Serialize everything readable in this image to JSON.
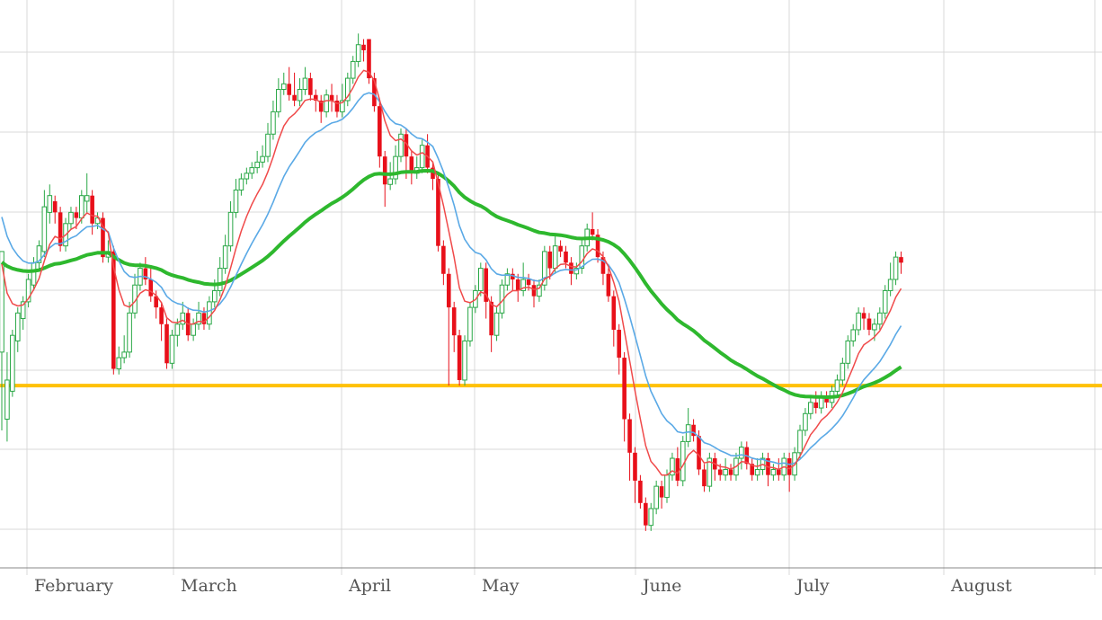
{
  "chart_data": {
    "type": "candlestick",
    "x_axis": {
      "months": [
        "February",
        "March",
        "April",
        "May",
        "June",
        "July",
        "August"
      ]
    },
    "grid": true,
    "y_range": [
      0,
      10
    ],
    "horizontal_line": {
      "value": 3.1,
      "color": "#ffc107"
    },
    "colors": {
      "up": "#28a745",
      "down": "#e8101a",
      "fast_ma": "#f04a4a",
      "slow_ma": "#5aa9e6",
      "long_ma": "#2eb82e",
      "grid": "#d8d8d8"
    },
    "series": [
      {
        "name": "",
        "values": [
          [
            3.7,
            5.5,
            5.5,
            2.3
          ],
          [
            2.5,
            3.2,
            3.7,
            2.1
          ],
          [
            3.0,
            4.0,
            4.1,
            2.9
          ],
          [
            3.9,
            4.4,
            4.5,
            3.7
          ],
          [
            4.3,
            4.6,
            4.7,
            4.1
          ],
          [
            4.6,
            5.0,
            5.1,
            4.5
          ],
          [
            4.9,
            5.3,
            5.4,
            4.8
          ],
          [
            5.3,
            5.6,
            5.7,
            5.2
          ],
          [
            5.5,
            6.3,
            6.6,
            5.4
          ],
          [
            6.2,
            6.5,
            6.7,
            6.0
          ],
          [
            6.4,
            6.2,
            6.5,
            6.0
          ],
          [
            6.2,
            5.6,
            6.3,
            5.5
          ],
          [
            5.6,
            6.0,
            6.1,
            5.5
          ],
          [
            6.0,
            6.2,
            6.3,
            5.9
          ],
          [
            6.2,
            6.1,
            6.3,
            5.9
          ],
          [
            6.1,
            6.5,
            6.6,
            6.0
          ],
          [
            6.4,
            6.5,
            6.9,
            6.2
          ],
          [
            6.5,
            6.0,
            6.6,
            5.8
          ],
          [
            6.0,
            6.1,
            6.2,
            5.9
          ],
          [
            6.1,
            5.4,
            6.2,
            5.3
          ],
          [
            5.4,
            5.5,
            5.7,
            5.3
          ],
          [
            5.5,
            3.4,
            5.6,
            3.3
          ],
          [
            3.4,
            3.6,
            3.8,
            3.3
          ],
          [
            3.6,
            3.7,
            4.0,
            3.5
          ],
          [
            3.7,
            4.4,
            4.6,
            3.6
          ],
          [
            4.4,
            4.9,
            5.1,
            4.3
          ],
          [
            4.9,
            5.2,
            5.3,
            4.8
          ],
          [
            5.2,
            5.0,
            5.4,
            4.9
          ],
          [
            5.0,
            4.7,
            5.2,
            4.6
          ],
          [
            4.7,
            4.5,
            4.8,
            4.3
          ],
          [
            4.5,
            4.2,
            4.6,
            3.9
          ],
          [
            4.2,
            3.5,
            4.3,
            3.4
          ],
          [
            3.5,
            4.0,
            4.1,
            3.4
          ],
          [
            4.0,
            4.2,
            4.3,
            3.8
          ],
          [
            4.2,
            4.4,
            4.6,
            4.1
          ],
          [
            4.4,
            4.0,
            4.5,
            3.9
          ],
          [
            4.0,
            4.2,
            4.3,
            3.9
          ],
          [
            4.2,
            4.4,
            4.6,
            4.1
          ],
          [
            4.4,
            4.2,
            4.5,
            4.1
          ],
          [
            4.2,
            4.6,
            4.7,
            4.1
          ],
          [
            4.6,
            4.8,
            5.0,
            4.5
          ],
          [
            4.8,
            5.2,
            5.4,
            4.7
          ],
          [
            5.2,
            5.6,
            5.8,
            5.1
          ],
          [
            5.6,
            6.2,
            6.4,
            5.5
          ],
          [
            6.2,
            6.6,
            6.8,
            6.1
          ],
          [
            6.6,
            6.8,
            6.9,
            6.5
          ],
          [
            6.8,
            6.9,
            7.0,
            6.7
          ],
          [
            6.9,
            7.0,
            7.1,
            6.8
          ],
          [
            7.0,
            7.1,
            7.3,
            6.9
          ],
          [
            7.1,
            7.2,
            7.4,
            7.0
          ],
          [
            7.2,
            7.6,
            7.8,
            7.1
          ],
          [
            7.6,
            8.0,
            8.2,
            7.5
          ],
          [
            8.0,
            8.4,
            8.6,
            7.9
          ],
          [
            8.4,
            8.5,
            8.7,
            8.3
          ],
          [
            8.5,
            8.3,
            8.8,
            8.2
          ],
          [
            8.3,
            8.2,
            8.7,
            8.1
          ],
          [
            8.2,
            8.4,
            8.6,
            8.1
          ],
          [
            8.4,
            8.6,
            8.8,
            8.3
          ],
          [
            8.6,
            8.3,
            8.7,
            8.2
          ],
          [
            8.3,
            8.2,
            8.4,
            8.0
          ],
          [
            8.2,
            8.0,
            8.3,
            7.8
          ],
          [
            8.0,
            8.3,
            8.4,
            7.9
          ],
          [
            8.3,
            8.2,
            8.5,
            8.0
          ],
          [
            8.2,
            8.0,
            8.3,
            7.9
          ],
          [
            8.0,
            8.2,
            8.5,
            7.9
          ],
          [
            8.2,
            8.6,
            8.7,
            8.1
          ],
          [
            8.6,
            8.9,
            9.0,
            8.5
          ],
          [
            8.9,
            9.2,
            9.4,
            8.8
          ],
          [
            9.2,
            9.1,
            9.3,
            8.9
          ],
          [
            9.3,
            8.6,
            9.3,
            8.5
          ],
          [
            8.6,
            8.1,
            8.7,
            8.0
          ],
          [
            8.1,
            7.2,
            8.2,
            7.0
          ],
          [
            7.2,
            6.7,
            7.3,
            6.3
          ],
          [
            6.7,
            6.8,
            7.1,
            6.6
          ],
          [
            6.8,
            7.2,
            7.4,
            6.7
          ],
          [
            7.2,
            7.6,
            7.7,
            7.1
          ],
          [
            7.6,
            7.2,
            7.7,
            6.8
          ],
          [
            7.2,
            6.9,
            7.3,
            6.7
          ],
          [
            6.9,
            7.0,
            7.2,
            6.8
          ],
          [
            7.0,
            7.4,
            7.5,
            6.9
          ],
          [
            7.4,
            7.0,
            7.6,
            6.9
          ],
          [
            7.0,
            6.8,
            7.1,
            6.6
          ],
          [
            6.8,
            5.6,
            6.9,
            5.5
          ],
          [
            5.6,
            5.1,
            5.7,
            4.9
          ],
          [
            5.1,
            4.5,
            5.2,
            3.1
          ],
          [
            4.5,
            4.0,
            4.6,
            3.7
          ],
          [
            4.0,
            3.2,
            4.1,
            3.1
          ],
          [
            3.2,
            3.9,
            4.0,
            3.1
          ],
          [
            3.9,
            4.5,
            4.6,
            3.8
          ],
          [
            4.5,
            4.8,
            4.9,
            4.4
          ],
          [
            4.8,
            5.2,
            5.3,
            4.7
          ],
          [
            5.2,
            4.6,
            5.3,
            4.3
          ],
          [
            4.6,
            4.0,
            4.7,
            3.7
          ],
          [
            4.0,
            4.4,
            4.5,
            3.9
          ],
          [
            4.4,
            4.9,
            5.0,
            4.3
          ],
          [
            4.9,
            5.1,
            5.2,
            4.8
          ],
          [
            5.1,
            5.0,
            5.2,
            4.8
          ],
          [
            5.0,
            4.8,
            5.1,
            4.6
          ],
          [
            4.8,
            5.0,
            5.3,
            4.7
          ],
          [
            5.0,
            4.9,
            5.1,
            4.8
          ],
          [
            4.9,
            4.7,
            5.0,
            4.5
          ],
          [
            4.7,
            4.9,
            5.0,
            4.6
          ],
          [
            4.9,
            5.5,
            5.6,
            4.8
          ],
          [
            5.5,
            5.2,
            5.6,
            5.0
          ],
          [
            5.2,
            5.6,
            5.8,
            5.1
          ],
          [
            5.6,
            5.5,
            5.7,
            5.4
          ],
          [
            5.5,
            5.3,
            5.6,
            5.2
          ],
          [
            5.3,
            5.1,
            5.4,
            4.9
          ],
          [
            5.1,
            5.2,
            5.3,
            5.0
          ],
          [
            5.2,
            5.6,
            5.7,
            5.1
          ],
          [
            5.6,
            5.9,
            6.0,
            5.5
          ],
          [
            5.9,
            5.8,
            6.2,
            5.7
          ],
          [
            5.8,
            5.4,
            5.9,
            5.3
          ],
          [
            5.4,
            5.1,
            5.5,
            4.9
          ],
          [
            5.1,
            4.7,
            5.2,
            4.6
          ],
          [
            4.7,
            4.1,
            4.8,
            3.8
          ],
          [
            4.1,
            3.6,
            4.2,
            3.3
          ],
          [
            3.6,
            2.5,
            3.7,
            2.1
          ],
          [
            2.5,
            1.9,
            2.6,
            1.4
          ],
          [
            1.9,
            1.4,
            2.0,
            1.0
          ],
          [
            1.4,
            1.0,
            1.5,
            0.9
          ],
          [
            1.0,
            0.6,
            1.1,
            0.5
          ],
          [
            0.6,
            0.9,
            1.0,
            0.5
          ],
          [
            0.9,
            1.3,
            1.4,
            0.8
          ],
          [
            1.3,
            1.1,
            1.4,
            0.9
          ],
          [
            1.1,
            1.5,
            1.6,
            1.0
          ],
          [
            1.5,
            1.8,
            1.9,
            1.4
          ],
          [
            1.8,
            1.4,
            2.0,
            1.3
          ],
          [
            1.4,
            2.1,
            2.2,
            1.3
          ],
          [
            2.1,
            2.4,
            2.7,
            2.0
          ],
          [
            2.4,
            2.2,
            2.5,
            2.1
          ],
          [
            2.2,
            1.6,
            2.3,
            1.5
          ],
          [
            1.6,
            1.3,
            1.7,
            1.2
          ],
          [
            1.3,
            1.8,
            1.9,
            1.2
          ],
          [
            1.8,
            1.6,
            1.9,
            1.4
          ],
          [
            1.6,
            1.5,
            1.7,
            1.4
          ],
          [
            1.5,
            1.6,
            1.8,
            1.4
          ],
          [
            1.6,
            1.5,
            1.7,
            1.4
          ],
          [
            1.5,
            1.8,
            1.9,
            1.4
          ],
          [
            1.8,
            2.0,
            2.1,
            1.6
          ],
          [
            2.0,
            1.7,
            2.1,
            1.6
          ],
          [
            1.7,
            1.5,
            1.8,
            1.4
          ],
          [
            1.5,
            1.6,
            1.8,
            1.4
          ],
          [
            1.6,
            1.8,
            1.9,
            1.5
          ],
          [
            1.8,
            1.5,
            1.9,
            1.3
          ],
          [
            1.5,
            1.6,
            1.7,
            1.4
          ],
          [
            1.6,
            1.5,
            1.8,
            1.4
          ],
          [
            1.5,
            1.8,
            1.9,
            1.4
          ],
          [
            1.8,
            1.5,
            1.9,
            1.2
          ],
          [
            1.5,
            1.9,
            2.0,
            1.4
          ],
          [
            1.9,
            2.3,
            2.4,
            1.8
          ],
          [
            2.3,
            2.6,
            2.7,
            2.2
          ],
          [
            2.6,
            2.8,
            2.9,
            2.5
          ],
          [
            2.8,
            2.7,
            3.0,
            2.6
          ],
          [
            2.7,
            2.9,
            3.0,
            2.6
          ],
          [
            2.9,
            2.8,
            3.0,
            2.7
          ],
          [
            2.8,
            3.0,
            3.1,
            2.7
          ],
          [
            3.0,
            3.2,
            3.3,
            2.9
          ],
          [
            3.2,
            3.5,
            3.6,
            3.1
          ],
          [
            3.5,
            3.9,
            4.0,
            3.4
          ],
          [
            3.9,
            4.1,
            4.2,
            3.8
          ],
          [
            4.1,
            4.4,
            4.5,
            4.0
          ],
          [
            4.4,
            4.3,
            4.5,
            4.1
          ],
          [
            4.3,
            4.1,
            4.4,
            4.0
          ],
          [
            4.1,
            4.2,
            4.3,
            3.9
          ],
          [
            4.2,
            4.4,
            4.5,
            4.1
          ],
          [
            4.4,
            4.8,
            4.9,
            4.3
          ],
          [
            4.8,
            5.0,
            5.3,
            4.7
          ],
          [
            5.0,
            5.4,
            5.5,
            4.9
          ],
          [
            5.4,
            5.3,
            5.5,
            5.1
          ]
        ]
      },
      {
        "name": "",
        "values": []
      },
      {
        "name": "",
        "values": []
      },
      {
        "name": "",
        "values": []
      }
    ]
  }
}
